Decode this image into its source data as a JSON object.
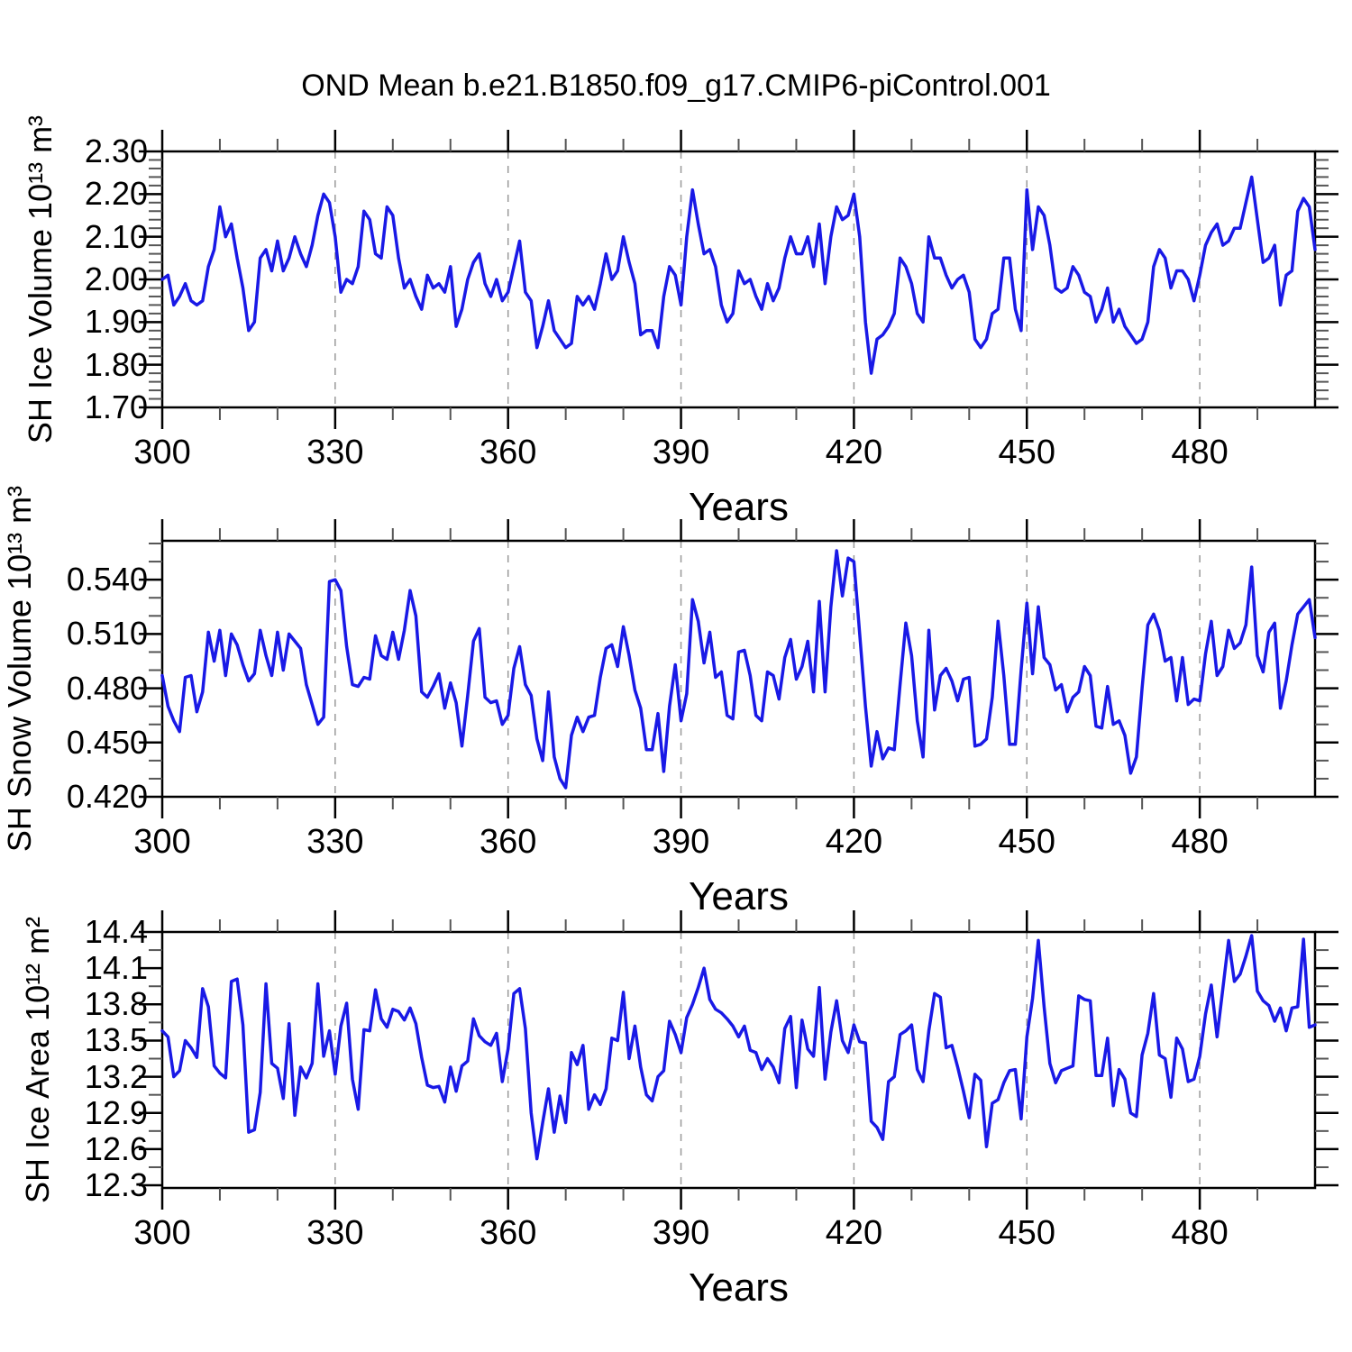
{
  "title": "OND Mean b.e21.B1850.f09_g17.CMIP6-piControl.001",
  "line_color": "#1919e6",
  "grid_color": "#999999",
  "frame_color": "#000000",
  "minor_tick_color": "#555555",
  "chart_data": [
    {
      "type": "line",
      "name": "SH Ice Volume",
      "ylabel": "SH Ice Volume 10¹³ m³",
      "xlabel": "Years",
      "x_start": 300,
      "x_end": 500,
      "x_step": 1,
      "x_major": [
        300,
        330,
        360,
        390,
        420,
        450,
        480
      ],
      "x_major_labels": [
        "300",
        "330",
        "360",
        "390",
        "420",
        "450",
        "480"
      ],
      "x_minor_step": 10,
      "x_grid": [
        330,
        360,
        390,
        420,
        450,
        480
      ],
      "grid_on": "dashed-vertical",
      "legend": "none",
      "ylim": [
        1.7,
        2.3
      ],
      "y_major": [
        2.3,
        2.2,
        2.1,
        2.0,
        1.9,
        1.8,
        1.7
      ],
      "y_major_labels": [
        "2.30",
        "2.20",
        "2.10",
        "2.00",
        "1.90",
        "1.80",
        "1.70"
      ],
      "y_minor_step": 0.02,
      "values": [
        2.0,
        2.01,
        1.94,
        1.96,
        1.99,
        1.95,
        1.94,
        1.95,
        2.03,
        2.07,
        2.17,
        2.1,
        2.13,
        2.05,
        1.98,
        1.88,
        1.9,
        2.05,
        2.07,
        2.02,
        2.09,
        2.02,
        2.05,
        2.1,
        2.06,
        2.03,
        2.08,
        2.15,
        2.2,
        2.18,
        2.1,
        1.97,
        2.0,
        1.99,
        2.03,
        2.16,
        2.14,
        2.06,
        2.05,
        2.17,
        2.15,
        2.05,
        1.98,
        2.0,
        1.96,
        1.93,
        2.01,
        1.98,
        1.99,
        1.97,
        2.03,
        1.89,
        1.93,
        2.0,
        2.04,
        2.06,
        1.99,
        1.96,
        2.0,
        1.95,
        1.97,
        2.03,
        2.09,
        1.97,
        1.95,
        1.84,
        1.89,
        1.95,
        1.88,
        1.86,
        1.84,
        1.85,
        1.96,
        1.94,
        1.96,
        1.93,
        1.99,
        2.06,
        2.0,
        2.02,
        2.1,
        2.04,
        1.99,
        1.87,
        1.88,
        1.88,
        1.84,
        1.96,
        2.03,
        2.01,
        1.94,
        2.1,
        2.21,
        2.13,
        2.06,
        2.07,
        2.03,
        1.94,
        1.9,
        1.92,
        2.02,
        1.99,
        2.0,
        1.96,
        1.93,
        1.99,
        1.95,
        1.98,
        2.05,
        2.1,
        2.06,
        2.06,
        2.1,
        2.03,
        2.13,
        1.99,
        2.1,
        2.17,
        2.14,
        2.15,
        2.2,
        2.1,
        1.9,
        1.78,
        1.86,
        1.87,
        1.89,
        1.92,
        2.05,
        2.03,
        1.99,
        1.92,
        1.9,
        2.1,
        2.05,
        2.05,
        2.01,
        1.98,
        2.0,
        2.01,
        1.97,
        1.86,
        1.84,
        1.86,
        1.92,
        1.93,
        2.05,
        2.05,
        1.93,
        1.88,
        2.21,
        2.07,
        2.17,
        2.15,
        2.08,
        1.98,
        1.97,
        1.98,
        2.03,
        2.01,
        1.97,
        1.96,
        1.9,
        1.93,
        1.98,
        1.9,
        1.93,
        1.89,
        1.87,
        1.85,
        1.86,
        1.9,
        2.03,
        2.07,
        2.05,
        1.98,
        2.02,
        2.02,
        2.0,
        1.95,
        2.01,
        2.08,
        2.11,
        2.13,
        2.08,
        2.09,
        2.12,
        2.12,
        2.18,
        2.24,
        2.14,
        2.04,
        2.05,
        2.08,
        1.94,
        2.01,
        2.02,
        2.16,
        2.19,
        2.17,
        2.07
      ]
    },
    {
      "type": "line",
      "name": "SH Snow Volume",
      "ylabel": "SH Snow Volume 10¹³ m³",
      "xlabel": "Years",
      "x_start": 300,
      "x_end": 500,
      "x_step": 1,
      "x_major": [
        300,
        330,
        360,
        390,
        420,
        450,
        480
      ],
      "x_major_labels": [
        "300",
        "330",
        "360",
        "390",
        "420",
        "450",
        "480"
      ],
      "x_minor_step": 10,
      "x_grid": [
        330,
        360,
        390,
        420,
        450,
        480
      ],
      "grid_on": "dashed-vertical",
      "legend": "none",
      "ylim": [
        0.42,
        0.5615
      ],
      "y_major": [
        0.54,
        0.51,
        0.48,
        0.45,
        0.42
      ],
      "y_major_labels": [
        "0.540",
        "0.510",
        "0.480",
        "0.450",
        "0.420"
      ],
      "y_minor_step": 0.01,
      "values": [
        0.487,
        0.47,
        0.462,
        0.456,
        0.486,
        0.487,
        0.467,
        0.478,
        0.511,
        0.495,
        0.512,
        0.487,
        0.51,
        0.504,
        0.493,
        0.484,
        0.488,
        0.512,
        0.498,
        0.487,
        0.511,
        0.49,
        0.51,
        0.506,
        0.502,
        0.482,
        0.471,
        0.46,
        0.464,
        0.539,
        0.54,
        0.534,
        0.503,
        0.482,
        0.481,
        0.486,
        0.485,
        0.509,
        0.498,
        0.496,
        0.511,
        0.496,
        0.512,
        0.534,
        0.52,
        0.478,
        0.475,
        0.481,
        0.488,
        0.469,
        0.483,
        0.472,
        0.448,
        0.476,
        0.506,
        0.513,
        0.475,
        0.472,
        0.473,
        0.46,
        0.465,
        0.491,
        0.503,
        0.482,
        0.476,
        0.452,
        0.44,
        0.478,
        0.442,
        0.43,
        0.425,
        0.454,
        0.464,
        0.456,
        0.464,
        0.465,
        0.486,
        0.502,
        0.504,
        0.492,
        0.514,
        0.498,
        0.479,
        0.469,
        0.446,
        0.446,
        0.466,
        0.434,
        0.47,
        0.493,
        0.462,
        0.477,
        0.529,
        0.517,
        0.494,
        0.511,
        0.486,
        0.489,
        0.465,
        0.463,
        0.5,
        0.501,
        0.487,
        0.465,
        0.462,
        0.489,
        0.487,
        0.474,
        0.497,
        0.507,
        0.485,
        0.492,
        0.506,
        0.478,
        0.528,
        0.478,
        0.525,
        0.556,
        0.531,
        0.552,
        0.55,
        0.51,
        0.47,
        0.437,
        0.456,
        0.441,
        0.447,
        0.446,
        0.482,
        0.516,
        0.498,
        0.462,
        0.442,
        0.512,
        0.468,
        0.487,
        0.491,
        0.484,
        0.473,
        0.485,
        0.486,
        0.448,
        0.449,
        0.452,
        0.475,
        0.517,
        0.487,
        0.449,
        0.449,
        0.49,
        0.527,
        0.488,
        0.525,
        0.497,
        0.493,
        0.479,
        0.482,
        0.467,
        0.475,
        0.478,
        0.492,
        0.487,
        0.459,
        0.458,
        0.481,
        0.46,
        0.462,
        0.454,
        0.433,
        0.442,
        0.48,
        0.515,
        0.521,
        0.512,
        0.495,
        0.497,
        0.473,
        0.497,
        0.471,
        0.474,
        0.473,
        0.499,
        0.517,
        0.487,
        0.492,
        0.512,
        0.502,
        0.505,
        0.515,
        0.547,
        0.498,
        0.489,
        0.511,
        0.516,
        0.469,
        0.484,
        0.504,
        0.521,
        0.525,
        0.529,
        0.508
      ]
    },
    {
      "type": "line",
      "name": "SH Ice Area",
      "ylabel": "SH Ice Area 10¹² m²",
      "xlabel": "Years",
      "x_start": 300,
      "x_end": 500,
      "x_step": 1,
      "x_major": [
        300,
        330,
        360,
        390,
        420,
        450,
        480
      ],
      "x_major_labels": [
        "300",
        "330",
        "360",
        "390",
        "420",
        "450",
        "480"
      ],
      "x_minor_step": 10,
      "x_grid": [
        330,
        360,
        390,
        420,
        450,
        480
      ],
      "grid_on": "dashed-vertical",
      "legend": "none",
      "ylim": [
        12.278,
        14.4
      ],
      "y_major": [
        14.4,
        14.1,
        13.8,
        13.5,
        13.2,
        12.9,
        12.6,
        12.3
      ],
      "y_major_labels": [
        "14.4",
        "14.1",
        "13.8",
        "13.5",
        "13.2",
        "12.9",
        "12.6",
        "12.3"
      ],
      "y_minor_step": 0.15,
      "values": [
        13.58,
        13.53,
        13.2,
        13.25,
        13.5,
        13.44,
        13.36,
        13.93,
        13.78,
        13.29,
        13.23,
        13.19,
        13.99,
        14.01,
        13.63,
        12.74,
        12.76,
        13.07,
        13.97,
        13.31,
        13.27,
        13.02,
        13.64,
        12.88,
        13.28,
        13.19,
        13.31,
        13.97,
        13.37,
        13.58,
        13.22,
        13.62,
        13.81,
        13.18,
        12.93,
        13.59,
        13.58,
        13.92,
        13.68,
        13.61,
        13.76,
        13.74,
        13.67,
        13.77,
        13.64,
        13.36,
        13.13,
        13.11,
        13.12,
        12.99,
        13.28,
        13.08,
        13.29,
        13.33,
        13.68,
        13.54,
        13.49,
        13.46,
        13.56,
        13.16,
        13.43,
        13.89,
        13.93,
        13.6,
        12.9,
        12.52,
        12.82,
        13.1,
        12.74,
        13.04,
        12.82,
        13.4,
        13.3,
        13.46,
        12.93,
        13.05,
        12.97,
        13.1,
        13.52,
        13.5,
        13.9,
        13.35,
        13.62,
        13.28,
        13.05,
        13.0,
        13.2,
        13.25,
        13.66,
        13.55,
        13.4,
        13.69,
        13.8,
        13.94,
        14.1,
        13.84,
        13.76,
        13.73,
        13.68,
        13.62,
        13.53,
        13.62,
        13.42,
        13.4,
        13.26,
        13.35,
        13.28,
        13.15,
        13.6,
        13.7,
        13.11,
        13.67,
        13.43,
        13.37,
        13.94,
        13.18,
        13.57,
        13.83,
        13.5,
        13.4,
        13.63,
        13.49,
        13.48,
        12.83,
        12.78,
        12.68,
        13.16,
        13.2,
        13.55,
        13.58,
        13.63,
        13.26,
        13.16,
        13.58,
        13.89,
        13.86,
        13.44,
        13.46,
        13.28,
        13.08,
        12.86,
        13.22,
        13.17,
        12.62,
        12.98,
        13.01,
        13.15,
        13.25,
        13.26,
        12.85,
        13.53,
        13.85,
        14.33,
        13.78,
        13.31,
        13.15,
        13.25,
        13.27,
        13.29,
        13.87,
        13.84,
        13.83,
        13.21,
        13.21,
        13.52,
        12.96,
        13.26,
        13.18,
        12.9,
        12.87,
        13.38,
        13.56,
        13.89,
        13.38,
        13.35,
        13.03,
        13.52,
        13.43,
        13.16,
        13.18,
        13.37,
        13.72,
        13.96,
        13.53,
        13.93,
        14.33,
        13.99,
        14.05,
        14.2,
        14.37,
        13.91,
        13.83,
        13.79,
        13.66,
        13.77,
        13.58,
        13.77,
        13.78,
        14.34,
        13.61,
        13.63
      ]
    }
  ]
}
